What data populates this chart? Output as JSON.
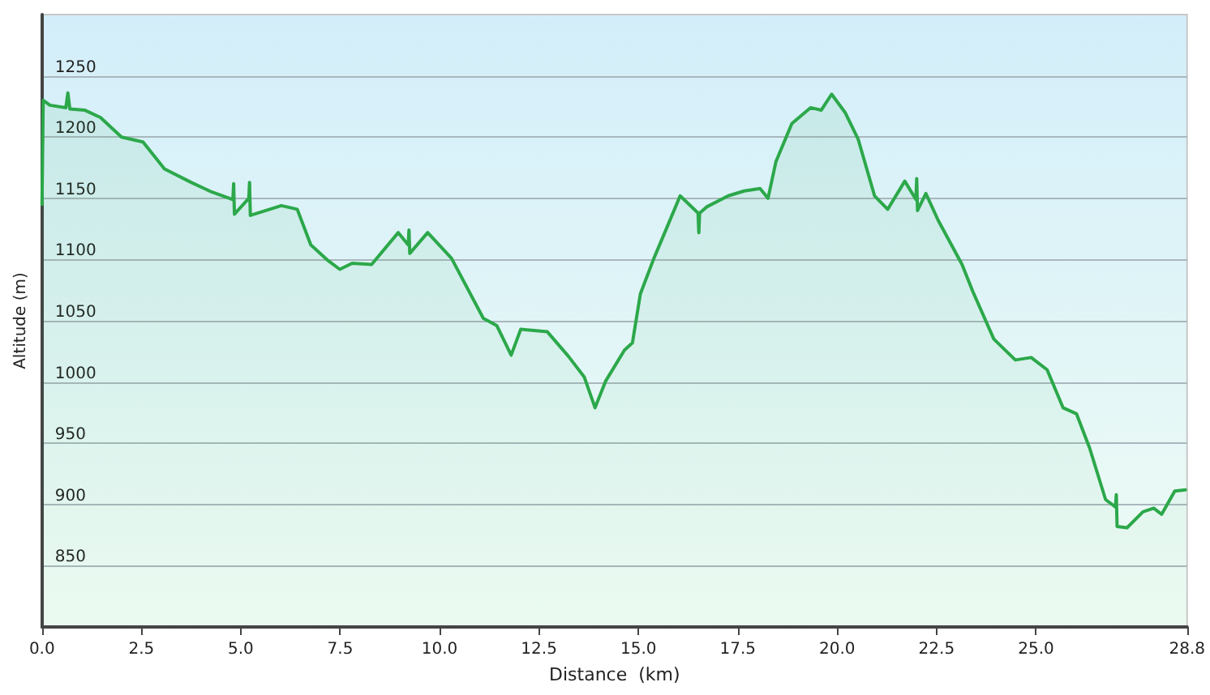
{
  "chart_data": {
    "type": "area",
    "xlabel": "Distance  (km)",
    "ylabel": "Altitude (m)",
    "x": [
      0,
      0.03,
      0.2,
      0.6,
      0.65,
      0.7,
      1.07,
      1.47,
      2.0,
      2.54,
      3.08,
      3.75,
      4.28,
      4.8,
      4.82,
      4.84,
      5.2,
      5.22,
      5.24,
      6.02,
      6.42,
      6.76,
      7.2,
      7.49,
      7.8,
      8.29,
      8.96,
      9.21,
      9.23,
      9.25,
      9.7,
      10.3,
      11.1,
      11.44,
      11.8,
      12.04,
      12.71,
      13.24,
      13.64,
      13.91,
      14.18,
      14.65,
      14.85,
      15.05,
      15.39,
      15.65,
      16.05,
      16.5,
      16.52,
      16.54,
      16.72,
      17.26,
      17.66,
      18.06,
      18.26,
      18.46,
      18.86,
      19.33,
      19.6,
      19.86,
      20.2,
      20.53,
      20.94,
      21.27,
      21.7,
      21.98,
      22.0,
      22.02,
      22.23,
      22.54,
      23.14,
      23.41,
      23.94,
      24.48,
      24.88,
      25.28,
      25.68,
      26.02,
      26.35,
      26.75,
      27.0,
      27.02,
      27.04,
      27.29,
      27.69,
      27.96,
      28.16,
      28.49,
      28.76
    ],
    "series": [
      {
        "color": "#2ca84a",
        "values": [
          1145,
          1230,
          1226,
          1224,
          1236,
          1223,
          1222,
          1216,
          1200,
          1196,
          1174,
          1163,
          1155,
          1149,
          1162,
          1137,
          1150,
          1163,
          1136,
          1144,
          1141,
          1112,
          1099,
          1092,
          1097,
          1096,
          1122,
          1112,
          1124,
          1105,
          1122,
          1101,
          1052,
          1046,
          1022,
          1043,
          1041,
          1021,
          1004,
          979,
          1001,
          1026,
          1032,
          1072,
          1101,
          1121,
          1152,
          1138,
          1122,
          1138,
          1143,
          1152,
          1156,
          1158,
          1150,
          1180,
          1211,
          1224,
          1222,
          1235,
          1220,
          1198,
          1152,
          1141,
          1164,
          1149,
          1166,
          1140,
          1154,
          1132,
          1096,
          1074,
          1035,
          1018,
          1020,
          1010,
          979,
          974,
          946,
          904,
          898,
          908,
          882,
          881,
          894,
          897,
          892,
          911,
          912
        ]
      }
    ],
    "xlim": [
      0,
      28.8
    ],
    "ylim": [
      800,
      1300
    ],
    "xticks": [
      {
        "value": 0,
        "label": "0.0"
      },
      2.5,
      {
        "value": 5,
        "label": "5.0"
      },
      7.5,
      {
        "value": 10,
        "label": "10.0"
      },
      12.5,
      {
        "value": 15,
        "label": "15.0"
      },
      17.5,
      {
        "value": 20,
        "label": "20.0"
      },
      22.5,
      {
        "value": 25,
        "label": "25.0"
      },
      28.8
    ],
    "yticks": [
      850,
      900,
      950,
      1000,
      1050,
      1100,
      1150,
      1200,
      1250
    ],
    "grid": "y",
    "marker": "none",
    "line_style": "solid"
  }
}
